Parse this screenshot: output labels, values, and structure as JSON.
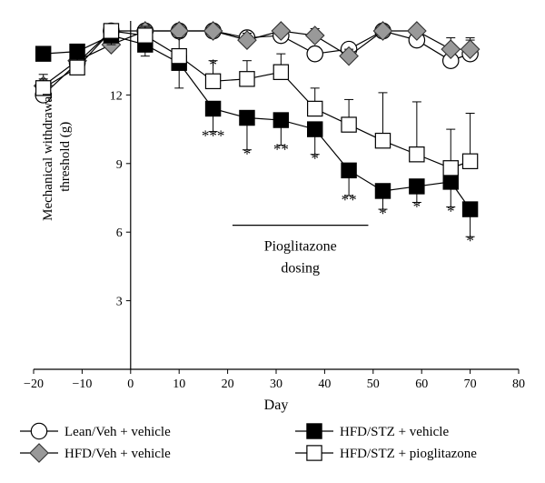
{
  "chart_data": {
    "type": "line",
    "xlabel": "Day",
    "ylabel": "Mechanical withdrawal threshold (g)",
    "xlim": [
      -20,
      80
    ],
    "ylim": [
      0,
      15
    ],
    "xticks": [
      -20,
      -10,
      0,
      10,
      20,
      30,
      40,
      50,
      60,
      70,
      80
    ],
    "yticks": [
      3,
      6,
      9,
      12
    ],
    "grid": false,
    "legend_position": "bottom",
    "annotation": {
      "text_line1": "Pioglitazone",
      "text_line2": "dosing",
      "x_start": 21,
      "x_end": 49,
      "y": 6.3
    },
    "series": [
      {
        "name": "Lean/Veh + vehicle",
        "marker": "circle",
        "fill": "#ffffff",
        "x": [
          -18,
          -11,
          -4,
          3,
          10,
          17,
          24,
          31,
          38,
          45,
          52,
          59,
          66,
          70
        ],
        "y": [
          12.0,
          13.4,
          14.8,
          14.8,
          14.8,
          14.8,
          14.5,
          14.6,
          13.8,
          14.0,
          14.8,
          14.4,
          13.5,
          13.8
        ],
        "err": [
          0.6,
          0.5,
          0.3,
          0.2,
          0.2,
          0.2,
          0.3,
          0.3,
          0.3,
          0.3,
          0.2,
          0.4,
          0.7,
          0.6
        ]
      },
      {
        "name": "HFD/Veh + vehicle",
        "marker": "diamond",
        "fill": "#999999",
        "x": [
          -18,
          -11,
          -4,
          3,
          10,
          17,
          24,
          31,
          38,
          45,
          52,
          59,
          66,
          70
        ],
        "y": [
          12.4,
          13.5,
          14.2,
          14.8,
          14.8,
          14.8,
          14.4,
          14.8,
          14.6,
          13.7,
          14.8,
          14.8,
          14.0,
          14.0
        ],
        "err": [
          0.5,
          0.4,
          0.3,
          0.2,
          0.2,
          0.2,
          0.3,
          0.2,
          0.3,
          0.3,
          0.2,
          0.2,
          0.5,
          0.5
        ]
      },
      {
        "name": "HFD/STZ + vehicle",
        "marker": "square",
        "fill": "#000000",
        "x": [
          -18,
          -11,
          -4,
          3,
          10,
          17,
          24,
          31,
          38,
          45,
          52,
          59,
          66,
          70
        ],
        "y": [
          13.8,
          13.9,
          14.6,
          14.2,
          13.4,
          11.4,
          11.0,
          10.9,
          10.5,
          8.7,
          7.8,
          8.0,
          8.2,
          7.0
        ],
        "err": [
          0.3,
          0.4,
          0.4,
          0.5,
          1.1,
          1.0,
          1.4,
          1.1,
          1.1,
          1.1,
          0.8,
          0.7,
          1.1,
          1.2
        ]
      },
      {
        "name": "HFD/STZ + pioglitazone",
        "marker": "square",
        "fill": "#ffffff",
        "x": [
          -18,
          -11,
          -4,
          3,
          10,
          17,
          24,
          31,
          38,
          45,
          52,
          59,
          66,
          70
        ],
        "y": [
          12.3,
          13.2,
          14.8,
          14.6,
          13.7,
          12.6,
          12.7,
          13.0,
          11.4,
          10.7,
          10.0,
          9.4,
          8.8,
          9.1
        ],
        "err": [
          0.4,
          0.8,
          0.3,
          0.4,
          0.8,
          0.9,
          0.8,
          0.8,
          0.9,
          1.1,
          2.1,
          2.3,
          1.7,
          2.1
        ]
      }
    ],
    "significance": [
      {
        "x": 17,
        "label": "*",
        "pos": "above",
        "y": 13.5
      },
      {
        "x": 17,
        "label": "***",
        "pos": "below",
        "y": 10.4
      },
      {
        "x": 24,
        "label": "*",
        "pos": "below",
        "y": 9.6
      },
      {
        "x": 31,
        "label": "**",
        "pos": "below",
        "y": 9.8
      },
      {
        "x": 38,
        "label": "*",
        "pos": "below",
        "y": 9.4
      },
      {
        "x": 45,
        "label": "**",
        "pos": "below",
        "y": 7.6
      },
      {
        "x": 52,
        "label": "*",
        "pos": "below",
        "y": 7.0
      },
      {
        "x": 59,
        "label": "*",
        "pos": "below",
        "y": 7.3
      },
      {
        "x": 66,
        "label": "*",
        "pos": "below",
        "y": 7.1
      },
      {
        "x": 70,
        "label": "*",
        "pos": "below",
        "y": 5.8
      }
    ]
  }
}
